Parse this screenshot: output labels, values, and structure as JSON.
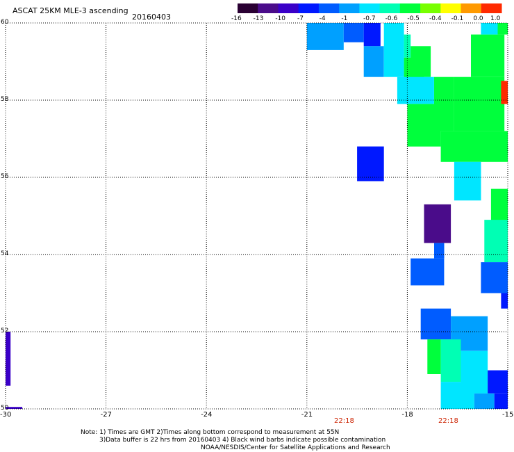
{
  "header": {
    "title": "ASCAT 25KM MLE-3 ascending",
    "date": "20160403"
  },
  "colorbar": {
    "labels": [
      "-16",
      "-13",
      "-10",
      "-7",
      "-4",
      "-1",
      "-0.7",
      "-0.6",
      "-0.5",
      "-0.4",
      "-0.1",
      "0.0",
      "1.0"
    ],
    "colors": [
      "#2a0033",
      "#4a0c8a",
      "#3a00c8",
      "#0018ff",
      "#005cff",
      "#00a0ff",
      "#00e6ff",
      "#00ffb4",
      "#00ff3c",
      "#78ff00",
      "#ffff00",
      "#ff9a00",
      "#ff2a00"
    ]
  },
  "axes": {
    "x_labels": [
      "-30",
      "-27",
      "-24",
      "-21",
      "-18",
      "-15"
    ],
    "y_labels": [
      "60",
      "58",
      "56",
      "54",
      "52",
      "50"
    ],
    "time_labels": [
      "22:18",
      "22:18"
    ]
  },
  "footer": {
    "line1": "Note: 1) Times are GMT 2)Times along bottom correspond to measurement at 55N",
    "line2": "3)Data buffer is 22 hrs from 20160403 4) Black wind barbs indicate possible contamination",
    "line3": "NOAA/NESDIS/Center for Satellite Applications and Research"
  },
  "map_data": {
    "lon_range": [
      -30,
      -15
    ],
    "lat_range": [
      50,
      60
    ],
    "cells": [
      {
        "lon": [
          -21.0,
          -19.9
        ],
        "lat": [
          59.3,
          60.0
        ],
        "color": "#00a0ff"
      },
      {
        "lon": [
          -19.9,
          -19.3
        ],
        "lat": [
          59.5,
          60.0
        ],
        "color": "#005cff"
      },
      {
        "lon": [
          -19.3,
          -18.8
        ],
        "lat": [
          59.4,
          60.0
        ],
        "color": "#0018ff"
      },
      {
        "lon": [
          -19.3,
          -18.7
        ],
        "lat": [
          58.6,
          59.4
        ],
        "color": "#00a0ff"
      },
      {
        "lon": [
          -18.7,
          -18.1
        ],
        "lat": [
          58.6,
          60.0
        ],
        "color": "#00e6ff"
      },
      {
        "lon": [
          -18.1,
          -17.9
        ],
        "lat": [
          59.1,
          59.7
        ],
        "color": "#00ffb4"
      },
      {
        "lon": [
          -18.1,
          -17.5
        ],
        "lat": [
          58.5,
          59.1
        ],
        "color": "#00ff3c"
      },
      {
        "lon": [
          -17.9,
          -17.3
        ],
        "lat": [
          58.6,
          59.4
        ],
        "color": "#00ff3c"
      },
      {
        "lon": [
          -18.3,
          -17.2
        ],
        "lat": [
          57.9,
          58.6
        ],
        "color": "#00e6ff"
      },
      {
        "lon": [
          -17.2,
          -16.6
        ],
        "lat": [
          57.2,
          58.6
        ],
        "color": "#00ff3c"
      },
      {
        "lon": [
          -16.6,
          -15.1
        ],
        "lat": [
          57.2,
          58.6
        ],
        "color": "#00ff3c"
      },
      {
        "lon": [
          -16.1,
          -15.1
        ],
        "lat": [
          58.6,
          59.7
        ],
        "color": "#00ff3c"
      },
      {
        "lon": [
          -15.8,
          -15.3
        ],
        "lat": [
          59.7,
          60.0
        ],
        "color": "#00e6ff"
      },
      {
        "lon": [
          -15.3,
          -15.0
        ],
        "lat": [
          59.7,
          60.0
        ],
        "color": "#00ff3c"
      },
      {
        "lon": [
          -18.0,
          -17.0
        ],
        "lat": [
          56.8,
          57.9
        ],
        "color": "#00ff3c"
      },
      {
        "lon": [
          -17.0,
          -15.0
        ],
        "lat": [
          56.4,
          57.2
        ],
        "color": "#00ff3c"
      },
      {
        "lon": [
          -15.2,
          -15.0
        ],
        "lat": [
          57.9,
          58.5
        ],
        "color": "#ff2a00"
      },
      {
        "lon": [
          -19.5,
          -18.7
        ],
        "lat": [
          55.9,
          56.8
        ],
        "color": "#0018ff"
      },
      {
        "lon": [
          -16.6,
          -15.8
        ],
        "lat": [
          55.4,
          56.4
        ],
        "color": "#00e6ff"
      },
      {
        "lon": [
          -15.5,
          -15.0
        ],
        "lat": [
          54.8,
          55.7
        ],
        "color": "#00ff3c"
      },
      {
        "lon": [
          -17.5,
          -16.7
        ],
        "lat": [
          54.3,
          55.3
        ],
        "color": "#4a0c8a"
      },
      {
        "lon": [
          -15.7,
          -15.0
        ],
        "lat": [
          53.8,
          54.9
        ],
        "color": "#00ffb4"
      },
      {
        "lon": [
          -17.2,
          -16.9
        ],
        "lat": [
          53.9,
          54.3
        ],
        "color": "#005cff"
      },
      {
        "lon": [
          -17.9,
          -16.9
        ],
        "lat": [
          53.2,
          53.9
        ],
        "color": "#005cff"
      },
      {
        "lon": [
          -15.8,
          -15.0
        ],
        "lat": [
          53.0,
          53.8
        ],
        "color": "#005cff"
      },
      {
        "lon": [
          -15.2,
          -15.0
        ],
        "lat": [
          52.6,
          53.0
        ],
        "color": "#0018ff"
      },
      {
        "lon": [
          -17.6,
          -16.7
        ],
        "lat": [
          51.8,
          52.6
        ],
        "color": "#005cff"
      },
      {
        "lon": [
          -16.7,
          -15.6
        ],
        "lat": [
          51.5,
          52.4
        ],
        "color": "#00a0ff"
      },
      {
        "lon": [
          -17.4,
          -17.0
        ],
        "lat": [
          50.9,
          51.8
        ],
        "color": "#00ff3c"
      },
      {
        "lon": [
          -17.0,
          -16.4
        ],
        "lat": [
          50.7,
          51.8
        ],
        "color": "#00ffb4"
      },
      {
        "lon": [
          -16.4,
          -15.6
        ],
        "lat": [
          50.4,
          51.5
        ],
        "color": "#00e6ff"
      },
      {
        "lon": [
          -15.6,
          -15.0
        ],
        "lat": [
          50.4,
          51.0
        ],
        "color": "#0018ff"
      },
      {
        "lon": [
          -17.0,
          -16.0
        ],
        "lat": [
          50.0,
          50.7
        ],
        "color": "#00e6ff"
      },
      {
        "lon": [
          -16.0,
          -15.4
        ],
        "lat": [
          50.0,
          50.4
        ],
        "color": "#00a0ff"
      },
      {
        "lon": [
          -15.4,
          -15.0
        ],
        "lat": [
          50.0,
          50.4
        ],
        "color": "#0018ff"
      },
      {
        "lon": [
          -30.0,
          -29.85
        ],
        "lat": [
          50.6,
          52.0
        ],
        "color": "#3a00c8"
      },
      {
        "lon": [
          -30.0,
          -29.5
        ],
        "lat": [
          50.0,
          50.05
        ],
        "color": "#3a00c8"
      }
    ]
  }
}
